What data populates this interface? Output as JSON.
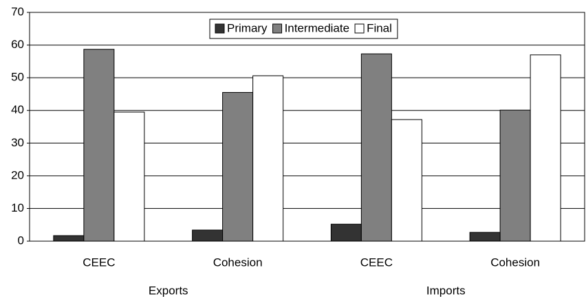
{
  "chart_data": {
    "type": "bar",
    "categories": [
      "CEEC",
      "Cohesion",
      "CEEC",
      "Cohesion"
    ],
    "group_labels": [
      "Exports",
      "Imports"
    ],
    "series": [
      {
        "name": "Primary",
        "color": "#333333",
        "values": [
          1.7,
          3.4,
          5.2,
          2.7
        ]
      },
      {
        "name": "Intermediate",
        "color": "#808080",
        "values": [
          58.7,
          45.5,
          57.3,
          40.1
        ]
      },
      {
        "name": "Final",
        "color": "#ffffff",
        "values": [
          39.5,
          50.6,
          37.2,
          57.0
        ]
      }
    ],
    "ylim": [
      0,
      70
    ],
    "yticks": [
      0,
      10,
      20,
      30,
      40,
      50,
      60,
      70
    ],
    "grid": true,
    "legend": "top"
  }
}
